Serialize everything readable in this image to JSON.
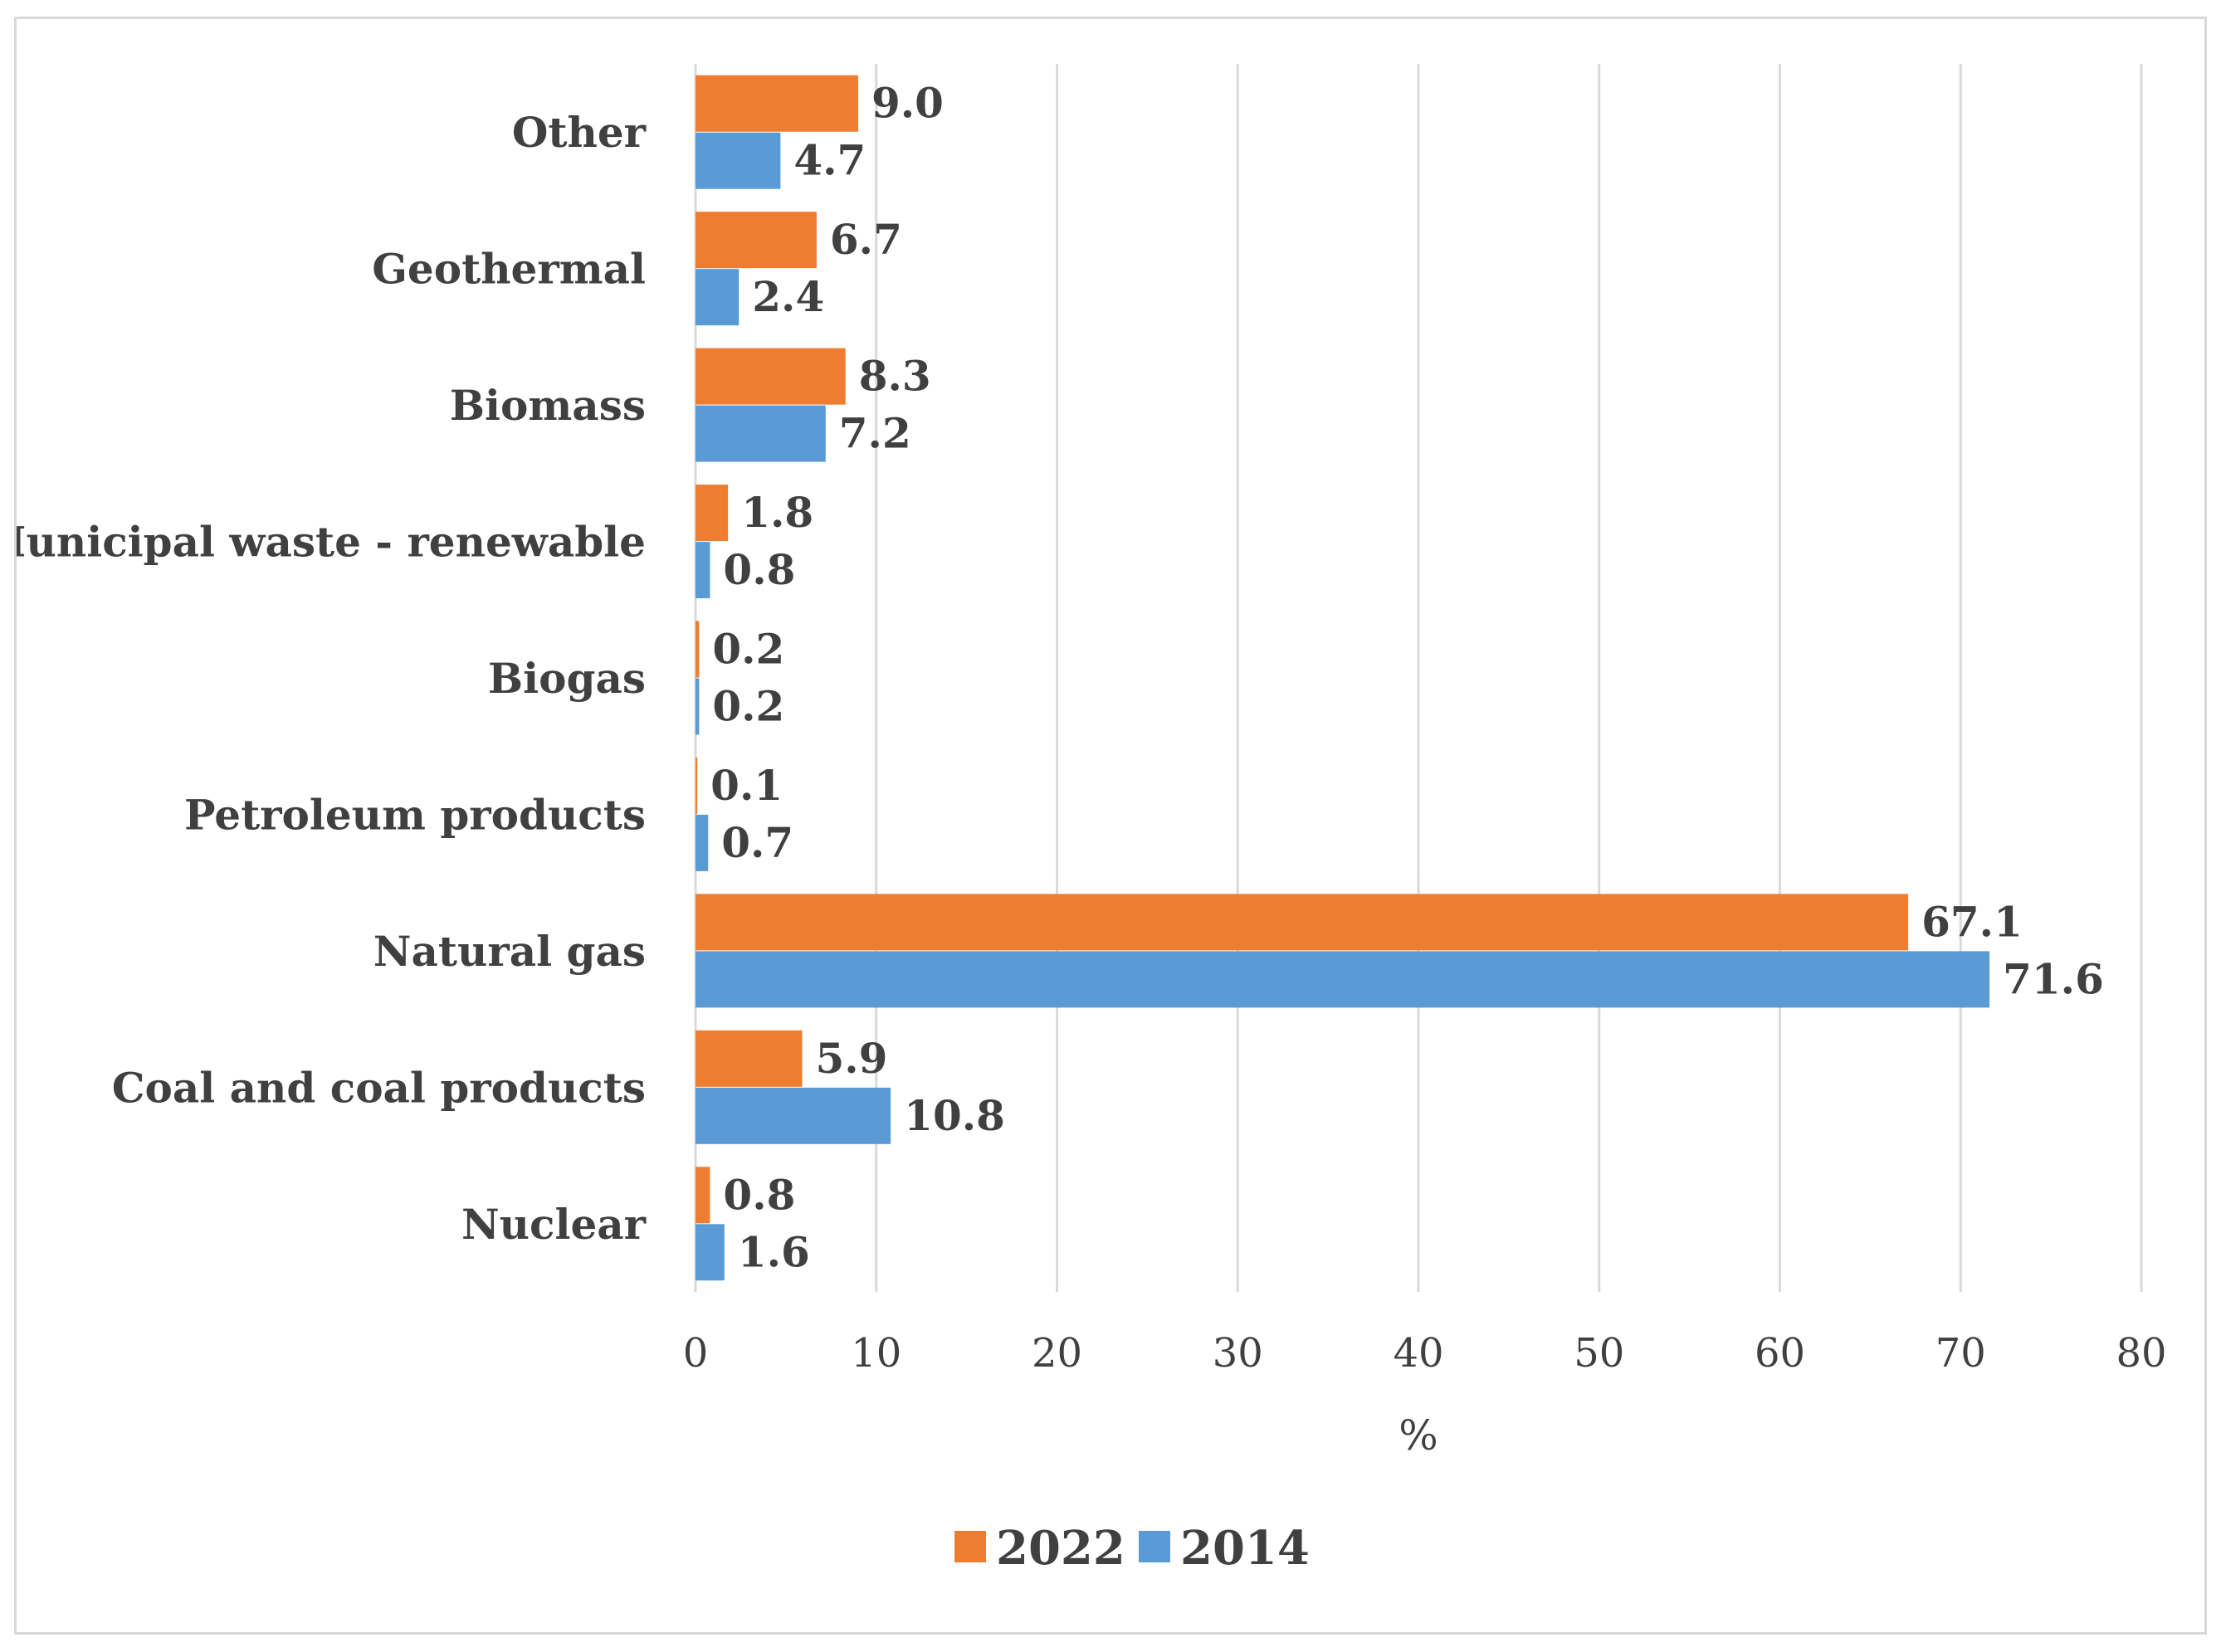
{
  "chart_data": {
    "type": "bar",
    "orientation": "horizontal",
    "categories": [
      "Other",
      "Geothermal",
      "Biomass",
      "Municipal waste - renewable",
      "Biogas",
      "Petroleum products",
      "Natural gas",
      "Coal and coal products",
      "Nuclear"
    ],
    "series": [
      {
        "name": "2022",
        "color": "#ED7D31",
        "values": [
          9.0,
          6.7,
          8.3,
          1.8,
          0.2,
          0.1,
          67.1,
          5.9,
          0.8
        ]
      },
      {
        "name": "2014",
        "color": "#5B9BD5",
        "values": [
          4.7,
          2.4,
          7.2,
          0.8,
          0.2,
          0.7,
          71.6,
          10.8,
          1.6
        ]
      }
    ],
    "value_labels": [
      [
        "9.0",
        "6.7",
        "8.3",
        "1.8",
        "0.2",
        "0.1",
        "67.1",
        "5.9",
        "0.8"
      ],
      [
        "4.7",
        "2.4",
        "7.2",
        "0.8",
        "0.2",
        "0.7",
        "71.6",
        "10.8",
        "1.6"
      ]
    ],
    "xlabel": "%",
    "ylabel": "",
    "xlim": [
      0,
      80
    ],
    "xticks": [
      "0",
      "10",
      "20",
      "30",
      "40",
      "50",
      "60",
      "70",
      "80"
    ],
    "grid": "vertical",
    "legend_position": "bottom",
    "legend_order": [
      "2022",
      "2014"
    ],
    "gridline_color": "#D9D9D9"
  }
}
